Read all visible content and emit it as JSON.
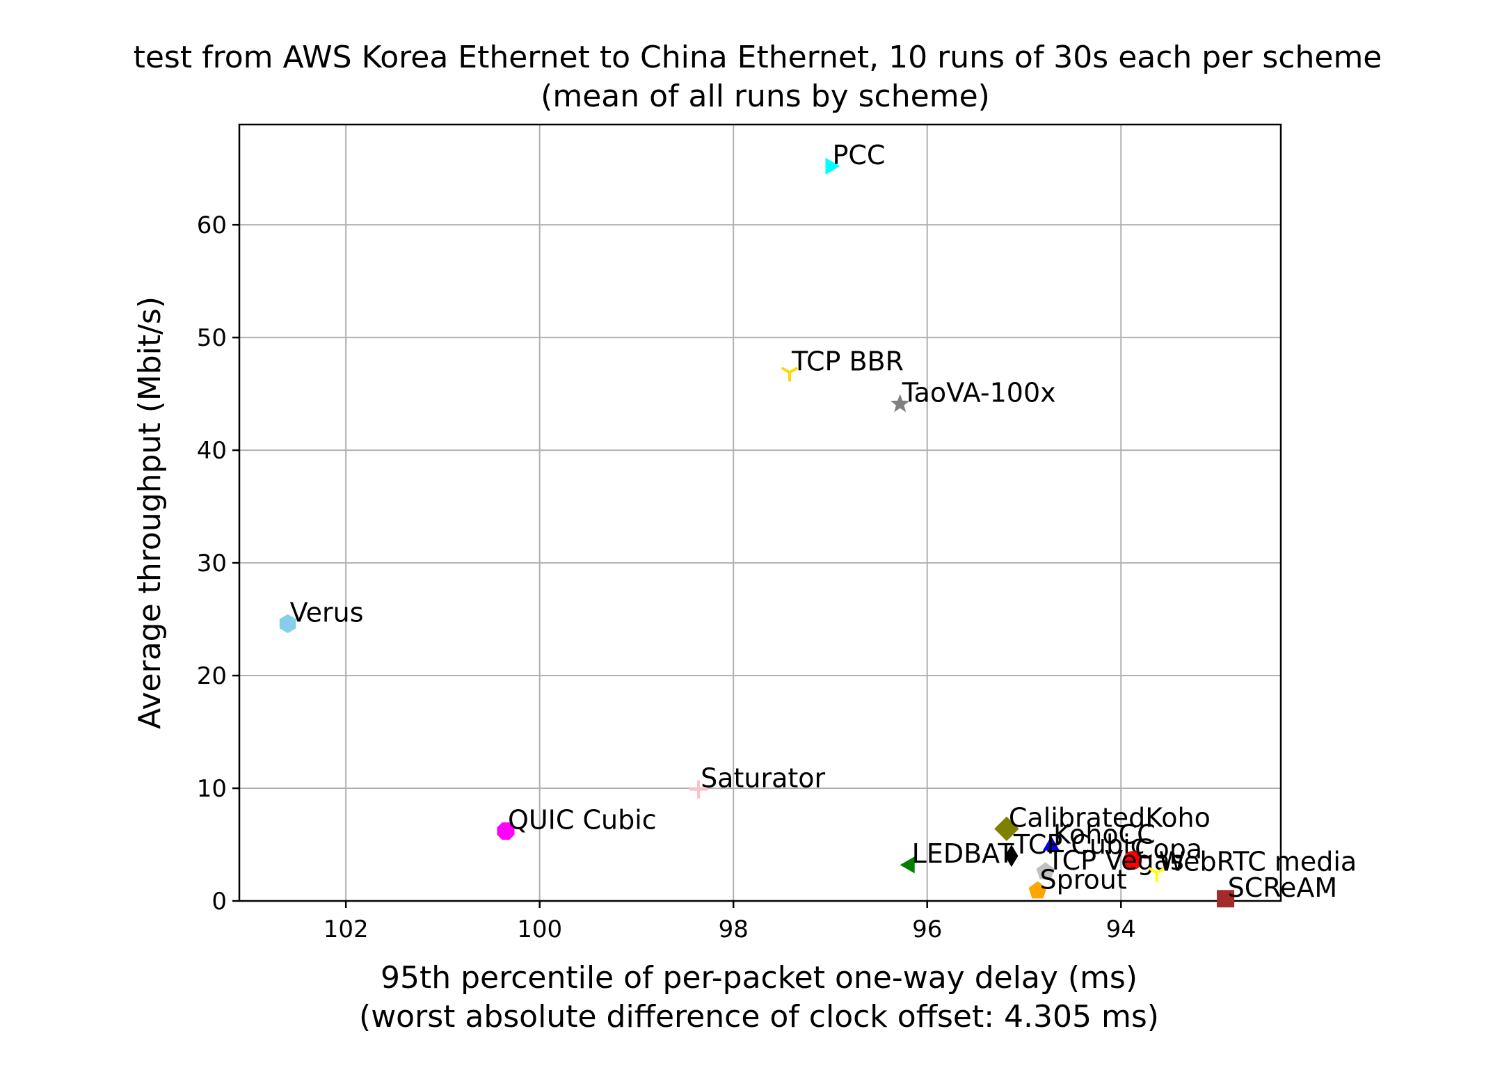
{
  "chart_data": {
    "type": "scatter",
    "title": "test from AWS Korea Ethernet to China Ethernet, 10 runs of 30s each per scheme",
    "subtitle": "(mean of all runs by scheme)",
    "xlabel": "95th percentile of per-packet one-way delay (ms)",
    "xlabel2": "(worst absolute difference of clock offset: 4.305 ms)",
    "ylabel": "Average throughput (Mbit/s)",
    "x_inverted": true,
    "xlim": [
      103.1,
      92.35
    ],
    "ylim": [
      0,
      68.9
    ],
    "xticks": [
      102,
      100,
      98,
      96,
      94
    ],
    "yticks": [
      0,
      10,
      20,
      30,
      40,
      50,
      60
    ],
    "grid": true,
    "points": [
      {
        "name": "PCC",
        "x": 97.0,
        "y": 65.2,
        "marker": "triangle-right",
        "color": "#00ffff"
      },
      {
        "name": "TCP BBR",
        "x": 97.42,
        "y": 46.9,
        "marker": "tri-down",
        "color": "#ffd700"
      },
      {
        "name": "TaoVA-100x",
        "x": 96.28,
        "y": 44.1,
        "marker": "star",
        "color": "#808080"
      },
      {
        "name": "Verus",
        "x": 102.6,
        "y": 24.6,
        "marker": "hexagon",
        "color": "#87ceeb"
      },
      {
        "name": "Saturator",
        "x": 98.36,
        "y": 9.9,
        "marker": "plus",
        "color": "#ffc0cb"
      },
      {
        "name": "QUIC Cubic",
        "x": 100.35,
        "y": 6.2,
        "marker": "octagon",
        "color": "#ff00ff"
      },
      {
        "name": "CalibratedKoho",
        "x": 95.18,
        "y": 6.4,
        "marker": "diamond",
        "color": "#808000"
      },
      {
        "name": "KohoCC",
        "x": 94.72,
        "y": 4.9,
        "marker": "triangle-up",
        "color": "#0000ff"
      },
      {
        "name": "TCP Cubic",
        "x": 95.13,
        "y": 4.0,
        "marker": "thin-diamond",
        "color": "#000000"
      },
      {
        "name": "Copa",
        "x": 93.88,
        "y": 3.6,
        "marker": "circle",
        "color": "#ff0000"
      },
      {
        "name": "LEDBAT",
        "x": 96.18,
        "y": 3.2,
        "marker": "triangle-left",
        "color": "#008000"
      },
      {
        "name": "TCP Vegas",
        "x": 94.78,
        "y": 2.6,
        "marker": "pentagon",
        "color": "#c0c0c0"
      },
      {
        "name": "WebRTC media",
        "x": 93.63,
        "y": 2.5,
        "marker": "tri-down",
        "color": "#ffff00"
      },
      {
        "name": "Sprout",
        "x": 94.86,
        "y": 0.9,
        "marker": "pentagon",
        "color": "#ffa500"
      },
      {
        "name": "SCReAM",
        "x": 92.92,
        "y": 0.2,
        "marker": "square",
        "color": "#a52a2a"
      }
    ]
  }
}
